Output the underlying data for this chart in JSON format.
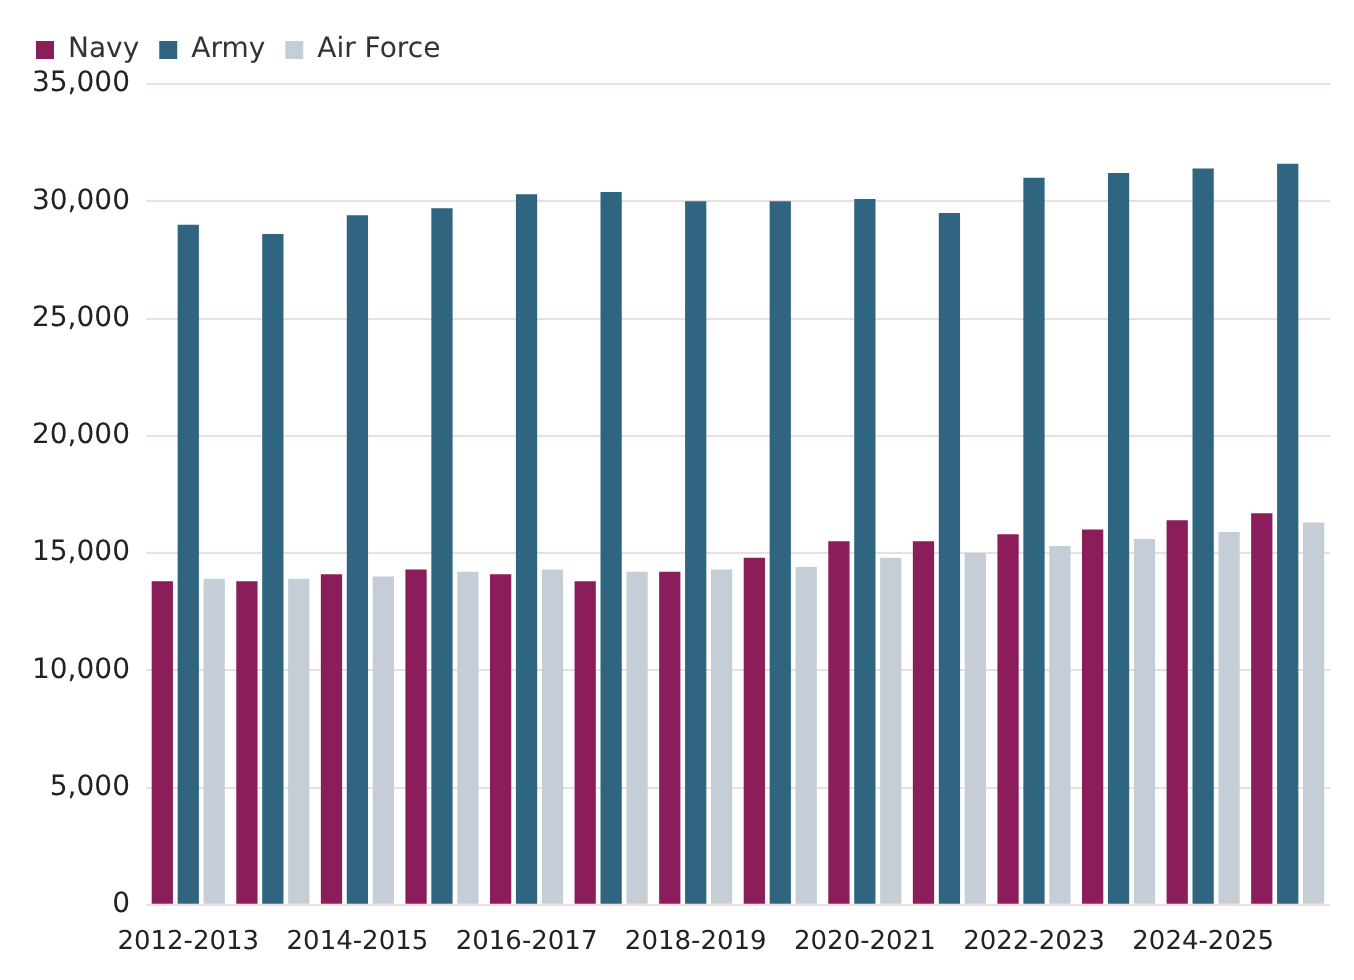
{
  "chart_data": {
    "type": "bar",
    "categories": [
      "2012-2013",
      null,
      "2014-2015",
      null,
      "2016-2017",
      null,
      "2018-2019",
      null,
      "2020-2021",
      null,
      "2022-2023",
      null,
      "2024-2025",
      null
    ],
    "series": [
      {
        "name": "Navy",
        "color": "#8b1e5a",
        "values": [
          13800,
          13800,
          14100,
          14300,
          14100,
          13800,
          14200,
          14800,
          15500,
          15500,
          15800,
          16000,
          16400,
          16700
        ]
      },
      {
        "name": "Army",
        "color": "#2f6580",
        "values": [
          29000,
          28600,
          29400,
          29700,
          30300,
          30400,
          30000,
          30000,
          30100,
          29500,
          31000,
          31200,
          31400,
          31600
        ]
      },
      {
        "name": "Air Force",
        "color": "#c5ced6",
        "values": [
          13900,
          13900,
          14000,
          14200,
          14300,
          14200,
          14300,
          14400,
          14800,
          15000,
          15300,
          15600,
          15900,
          16300
        ]
      }
    ],
    "ylim": [
      0,
      35000
    ],
    "yticks": [
      0,
      {
        "value": 5000,
        "label": "5,000"
      },
      {
        "value": 10000,
        "label": "10,000"
      },
      {
        "value": 15000,
        "label": "15,000"
      },
      {
        "value": 20000,
        "label": "20,000"
      },
      {
        "value": 25000,
        "label": "25,000"
      },
      {
        "value": 30000,
        "label": "30,000"
      },
      {
        "value": 35000,
        "label": "35,000"
      }
    ],
    "grid": "y",
    "legend": "top left"
  }
}
